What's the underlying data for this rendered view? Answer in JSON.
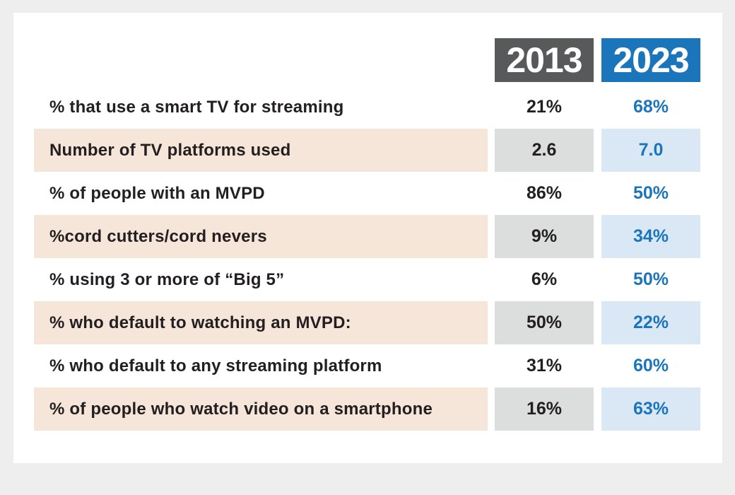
{
  "colors": {
    "page_background": "#eeeeee",
    "card_background": "#ffffff",
    "header_2013_bg": "#58595b",
    "header_2023_bg": "#1b75bb",
    "stripe_label_bg": "#f6e6da",
    "stripe_2013_cell_bg": "#dcdddd",
    "stripe_2023_cell_bg": "#d9e8f4",
    "label_text": "#231f20",
    "value_2013_text": "#231f20",
    "value_2023_text": "#1b75bb"
  },
  "table": {
    "columns": [
      {
        "label": "2013"
      },
      {
        "label": "2023"
      }
    ],
    "rows": [
      {
        "label": "% that use a smart TV for streaming",
        "v2013": "21%",
        "v2023": "68%"
      },
      {
        "label": "Number of TV platforms used",
        "v2013": "2.6",
        "v2023": "7.0"
      },
      {
        "label": "% of people with an MVPD",
        "v2013": "86%",
        "v2023": "50%"
      },
      {
        "label": "%cord cutters/cord nevers",
        "v2013": "9%",
        "v2023": "34%"
      },
      {
        "label": "% using 3 or more of “Big 5”",
        "v2013": "6%",
        "v2023": "50%"
      },
      {
        "label": "% who default to watching an MVPD:",
        "v2013": "50%",
        "v2023": "22%"
      },
      {
        "label": "% who default to any streaming platform",
        "v2013": "31%",
        "v2023": "60%"
      },
      {
        "label": "% of people who watch video on a smartphone",
        "v2013": "16%",
        "v2023": "63%"
      }
    ]
  },
  "chart_data": {
    "type": "table",
    "title": "",
    "categories": [
      "% that use a smart TV for streaming",
      "Number of TV platforms used",
      "% of people with an MVPD",
      "%cord cutters/cord nevers",
      "% using 3 or more of “Big 5”",
      "% who default to watching an MVPD:",
      "% who default to any streaming platform",
      "% of people who watch video on a smartphone"
    ],
    "series": [
      {
        "name": "2013",
        "values": [
          "21%",
          "2.6",
          "86%",
          "9%",
          "6%",
          "50%",
          "31%",
          "16%"
        ]
      },
      {
        "name": "2023",
        "values": [
          "68%",
          "7.0",
          "50%",
          "34%",
          "50%",
          "22%",
          "60%",
          "63%"
        ]
      }
    ]
  }
}
